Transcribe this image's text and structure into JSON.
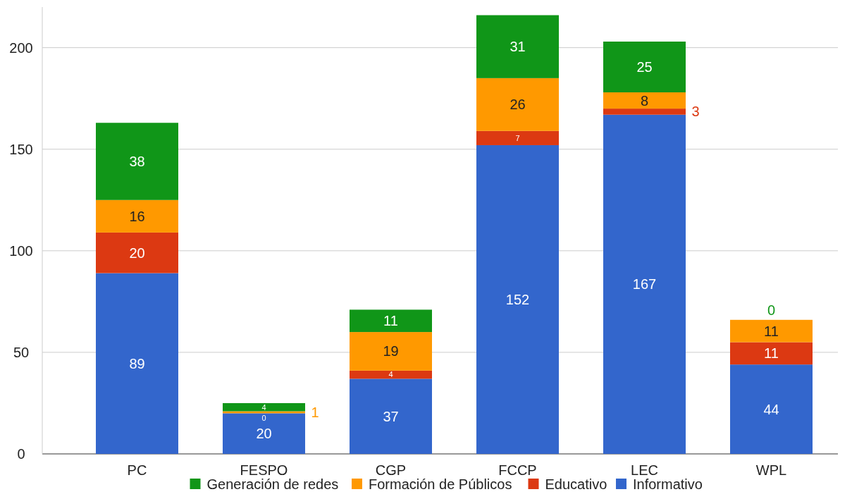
{
  "chart_data": {
    "type": "bar",
    "stacked": true,
    "categories": [
      "PC",
      "FESPO",
      "CGP",
      "FCCP",
      "LEC",
      "WPL"
    ],
    "series": [
      {
        "name": "Informativo",
        "color": "#3366cc",
        "values": [
          89,
          20,
          37,
          152,
          167,
          44
        ]
      },
      {
        "name": "Educativo",
        "color": "#dc3912",
        "values": [
          20,
          0,
          4,
          7,
          3,
          11
        ]
      },
      {
        "name": "Formación de Públicos",
        "color": "#ff9900",
        "values": [
          16,
          1,
          19,
          26,
          8,
          11
        ]
      },
      {
        "name": "Generación de redes",
        "color": "#109618",
        "values": [
          38,
          4,
          11,
          31,
          25,
          0
        ]
      }
    ],
    "ylim": [
      0,
      220
    ],
    "yticks": [
      0,
      50,
      100,
      150,
      200
    ],
    "grid": "y",
    "legend": "bottom",
    "data_labels": true
  }
}
